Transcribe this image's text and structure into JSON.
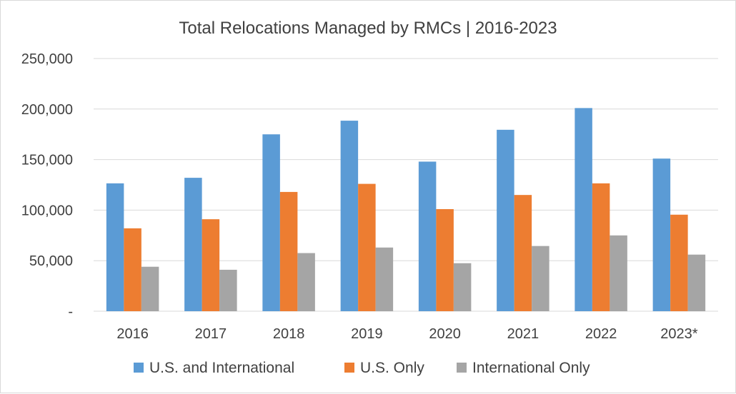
{
  "chart_data": {
    "type": "bar",
    "title": "Total Relocations Managed by RMCs | 2016-2023",
    "categories": [
      "2016",
      "2017",
      "2018",
      "2019",
      "2020",
      "2021",
      "2022",
      "2023*"
    ],
    "series": [
      {
        "name": "U.S. and International",
        "color": "#5b9bd5",
        "values": [
          126500,
          132000,
          175000,
          188500,
          148000,
          179500,
          201000,
          151000
        ]
      },
      {
        "name": "U.S. Only",
        "color": "#ed7d31",
        "values": [
          82000,
          91000,
          118000,
          126000,
          101000,
          115000,
          126500,
          95500
        ]
      },
      {
        "name": "International Only",
        "color": "#a5a5a5",
        "values": [
          44000,
          41000,
          57500,
          63000,
          47500,
          64500,
          75000,
          56000
        ]
      }
    ],
    "ylim": [
      0,
      250000
    ],
    "yticks": [
      "-",
      "50,000",
      "100,000",
      "150,000",
      "200,000",
      "250,000"
    ],
    "ytick_values": [
      0,
      50000,
      100000,
      150000,
      200000,
      250000
    ],
    "grid": true,
    "legend": "bottom"
  }
}
